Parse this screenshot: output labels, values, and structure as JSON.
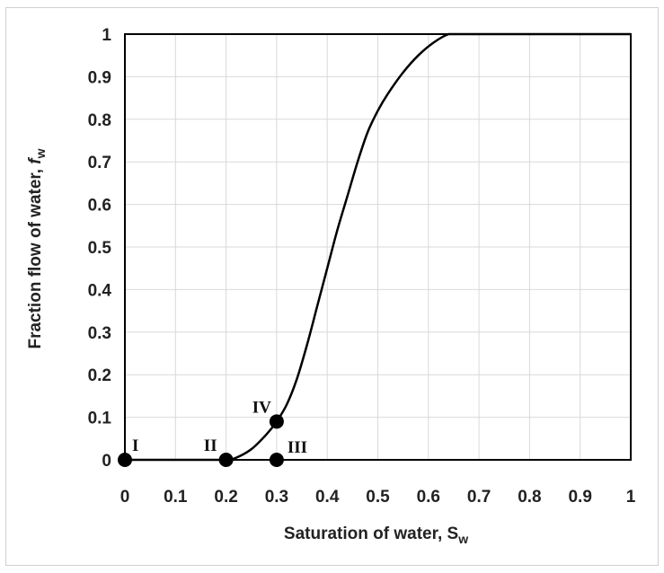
{
  "chart_data": {
    "type": "line",
    "xlabel": {
      "main": "Saturation of water, S",
      "sub": "w"
    },
    "ylabel": {
      "main": "Fraction flow of water, ",
      "italic": "f",
      "sub": "w"
    },
    "xlim": [
      0,
      1
    ],
    "ylim": [
      0,
      1
    ],
    "x_ticks": [
      "0",
      "0.1",
      "0.2",
      "0.3",
      "0.4",
      "0.5",
      "0.6",
      "0.7",
      "0.8",
      "0.9",
      "1"
    ],
    "y_ticks": [
      "0",
      "0.1",
      "0.2",
      "0.3",
      "0.4",
      "0.5",
      "0.6",
      "0.7",
      "0.8",
      "0.9",
      "1"
    ],
    "grid": true,
    "series": [
      {
        "x": [
          0,
          0.14,
          0.2,
          0.22,
          0.25,
          0.28,
          0.3,
          0.32,
          0.34,
          0.36,
          0.38,
          0.4,
          0.42,
          0.44,
          0.46,
          0.48,
          0.5,
          0.52,
          0.55,
          0.58,
          0.61,
          0.64,
          0.66,
          0.7,
          0.8,
          0.9,
          1.0
        ],
        "y": [
          0,
          0,
          0,
          0.005,
          0.025,
          0.06,
          0.09,
          0.13,
          0.19,
          0.27,
          0.36,
          0.45,
          0.54,
          0.62,
          0.7,
          0.77,
          0.82,
          0.86,
          0.91,
          0.95,
          0.98,
          1.0,
          1.0,
          1.0,
          1.0,
          1.0,
          1.0
        ],
        "color": "#000000"
      }
    ],
    "points": [
      {
        "label": "I",
        "x": 0,
        "y": 0
      },
      {
        "label": "II",
        "x": 0.2,
        "y": 0
      },
      {
        "label": "III",
        "x": 0.3,
        "y": 0
      },
      {
        "label": "IV",
        "x": 0.3,
        "y": 0.09
      }
    ]
  }
}
